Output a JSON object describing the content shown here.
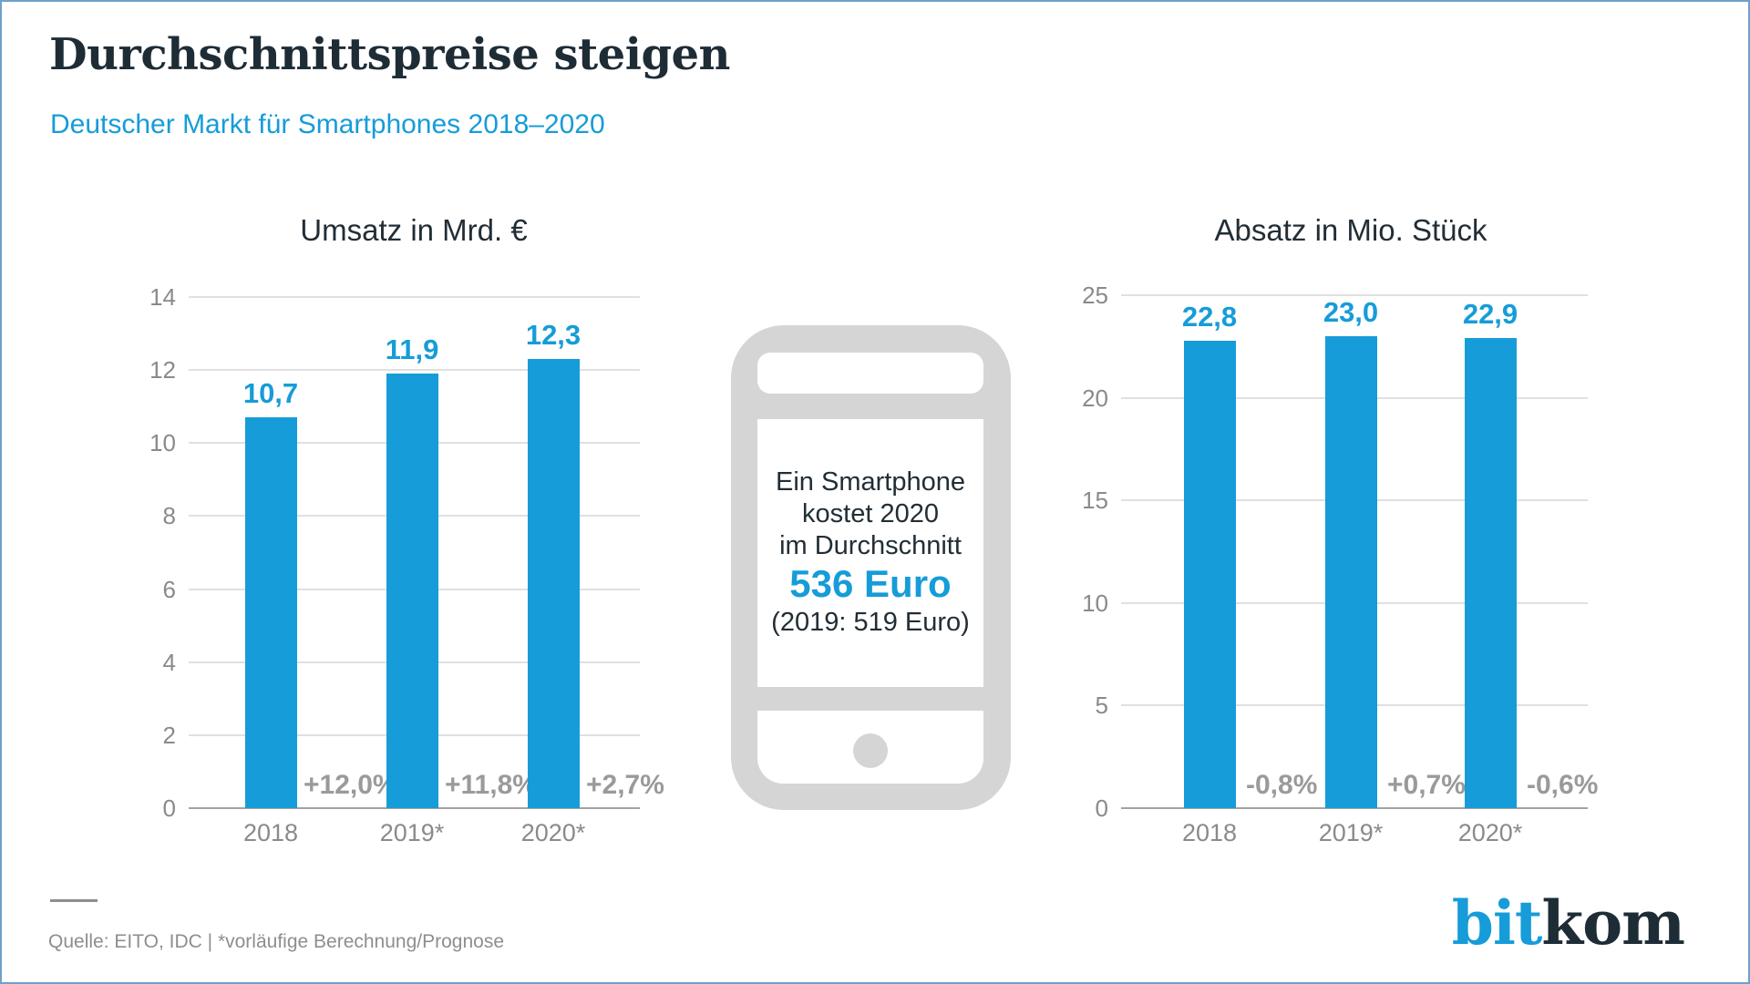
{
  "header": {
    "title": "Durchschnittspreise steigen",
    "subtitle": "Deutscher Markt für Smartphones 2018–2020"
  },
  "colors": {
    "accent": "#169CD8",
    "dark": "#1E2C36",
    "gray_text": "#9A9A9A",
    "grid": "#DADADA",
    "axis": "#A3A3A3",
    "phone_gray": "#D5D5D5",
    "border": "#6FA0C8"
  },
  "chart_data": [
    {
      "type": "bar",
      "title": "Umsatz in Mrd. €",
      "categories": [
        "2018",
        "2019*",
        "2020*"
      ],
      "values": [
        10.7,
        11.9,
        12.3
      ],
      "value_labels": [
        "10,7",
        "11,9",
        "12,3"
      ],
      "change_labels": [
        "+12,0%",
        "+11,8%",
        "+2,7%"
      ],
      "ylim": [
        0,
        14
      ],
      "yticks": [
        14,
        12,
        10,
        8,
        6,
        4,
        2,
        0
      ],
      "grid": true,
      "legend": "none",
      "bar_color": "#169CD8"
    },
    {
      "type": "bar",
      "title": "Absatz in Mio. Stück",
      "categories": [
        "2018",
        "2019*",
        "2020*"
      ],
      "values": [
        22.8,
        23.0,
        22.9
      ],
      "value_labels": [
        "22,8",
        "23,0",
        "22,9"
      ],
      "change_labels": [
        "-0,8%",
        "+0,7%",
        "-0,6%"
      ],
      "ylim": [
        0,
        25
      ],
      "yticks": [
        25,
        20,
        15,
        10,
        5,
        0
      ],
      "grid": true,
      "legend": "none",
      "bar_color": "#169CD8"
    }
  ],
  "phone": {
    "lines": [
      "Ein Smartphone",
      "kostet 2020",
      "im Durchschnitt"
    ],
    "price": "536 Euro",
    "note": "(2019: 519 Euro)"
  },
  "footer": {
    "source": "Quelle: EITO, IDC | *vorläufige Berechnung/Prognose"
  },
  "logo": {
    "part1": "bit",
    "part2": "kom"
  }
}
